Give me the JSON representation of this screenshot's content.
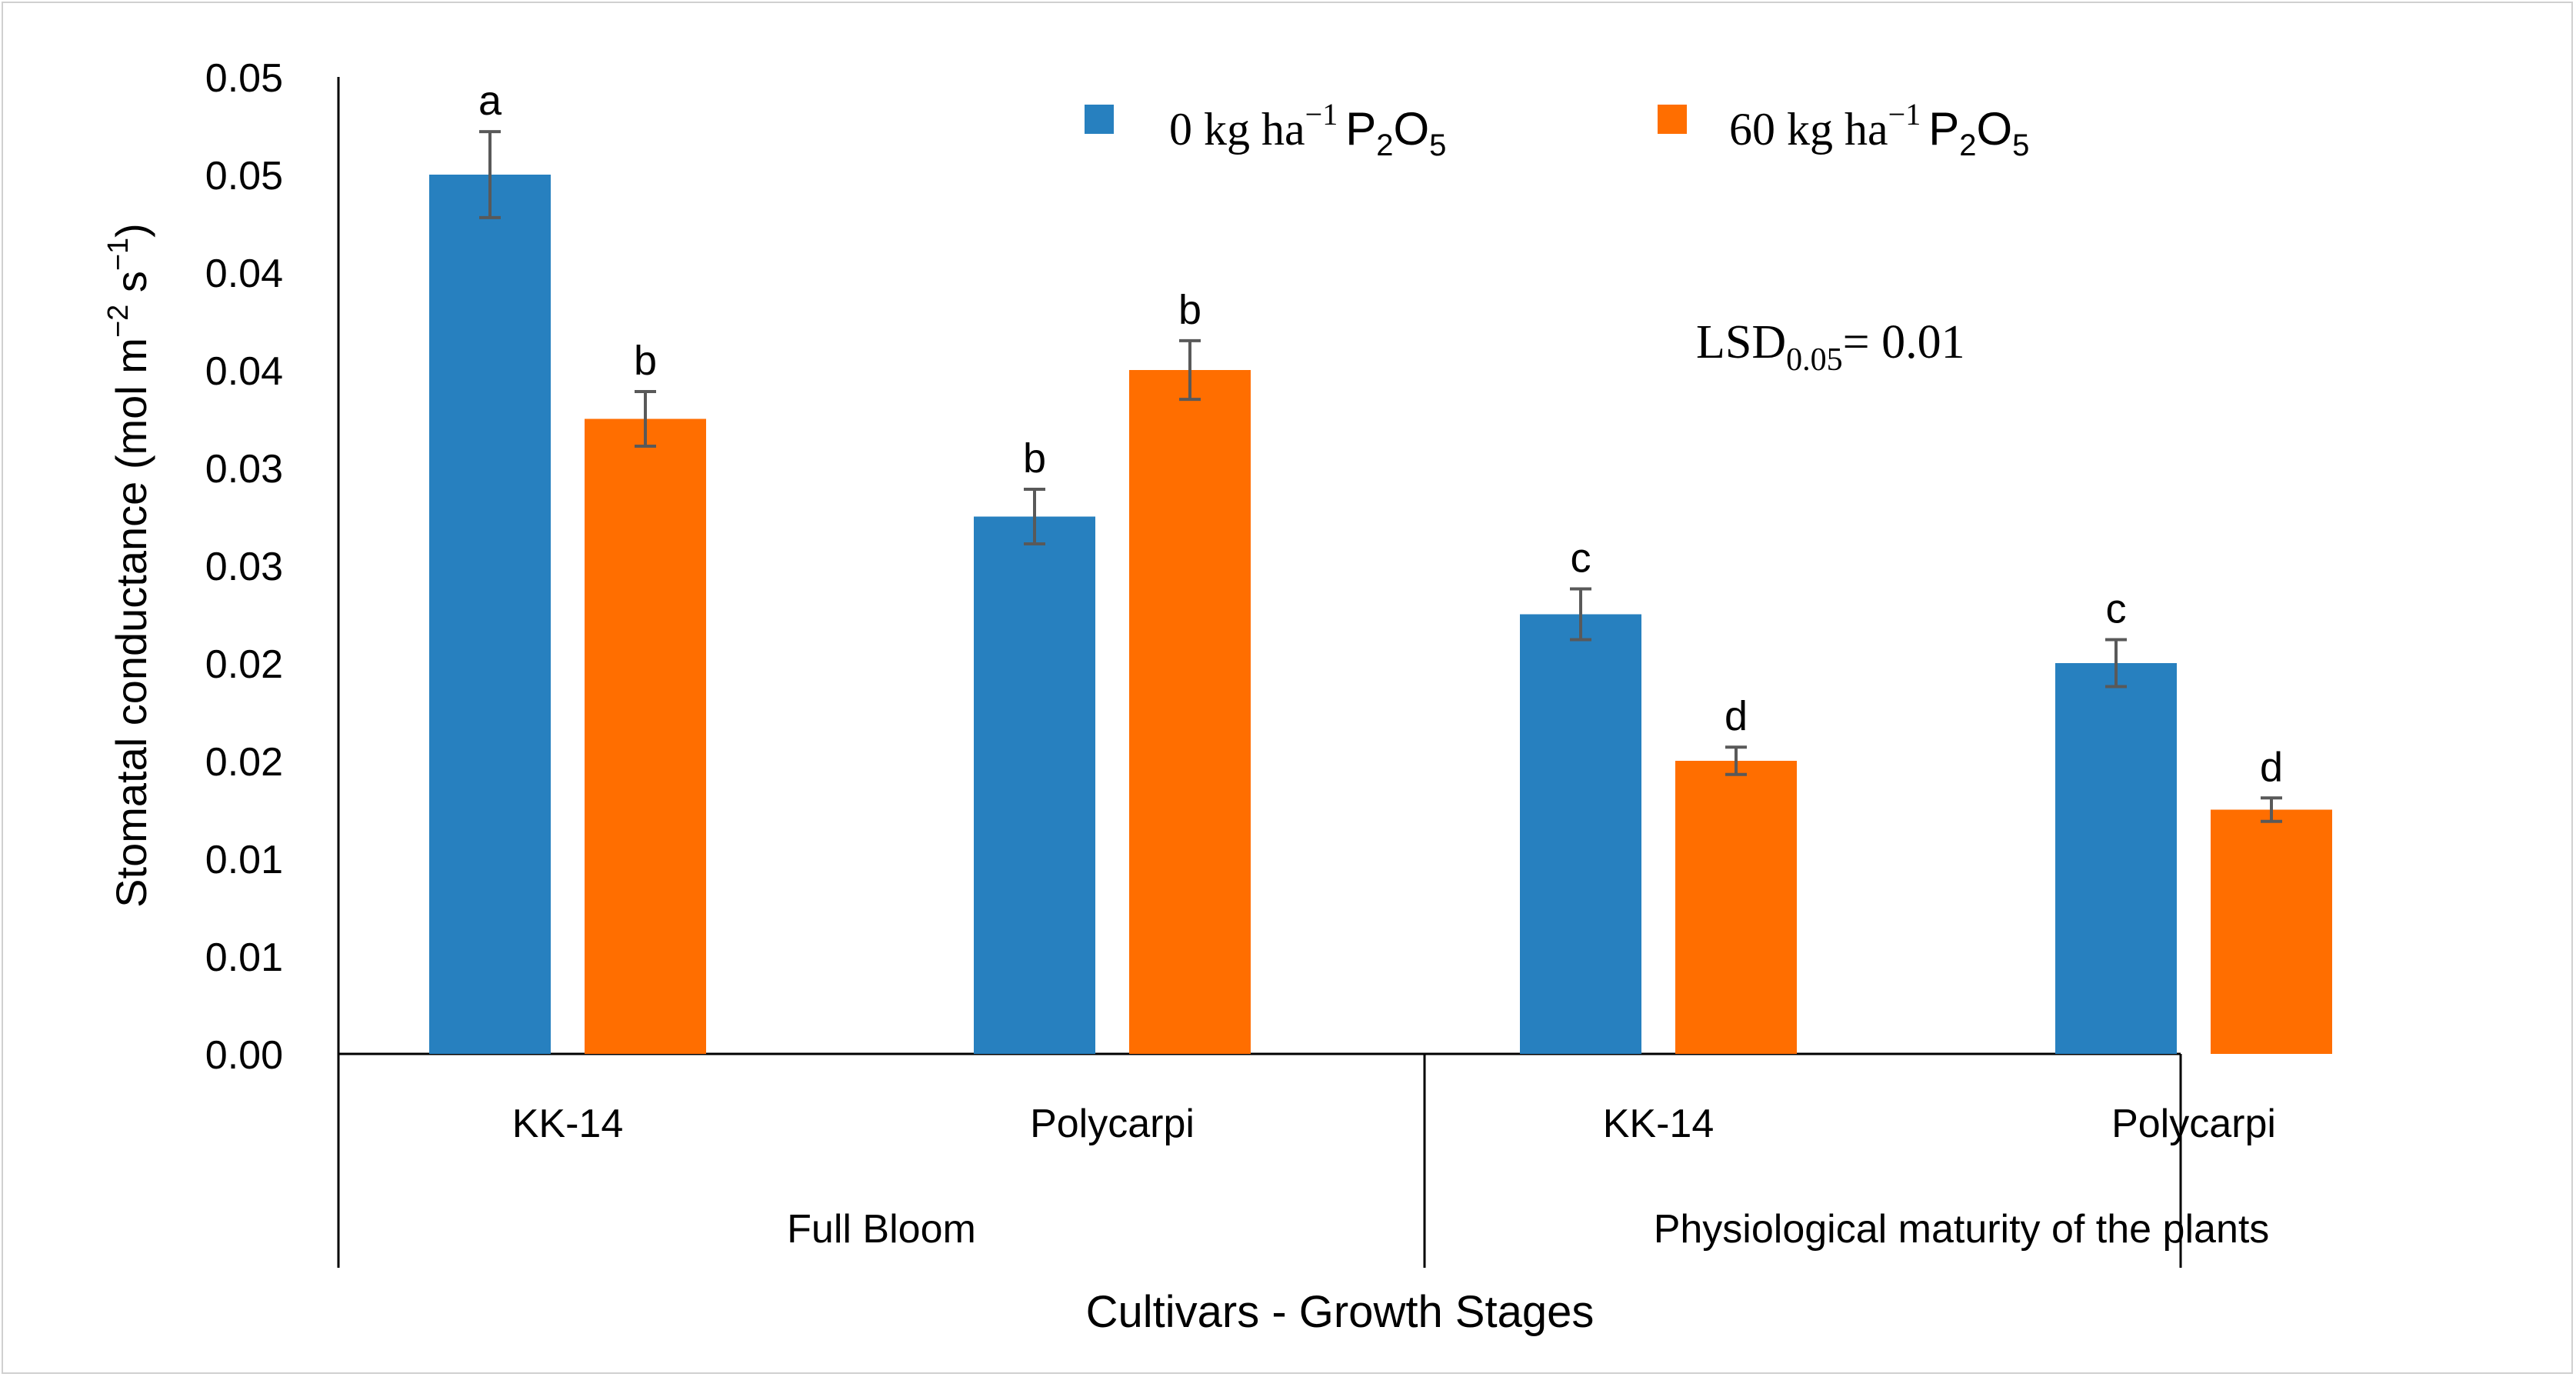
{
  "chart_data": {
    "type": "bar",
    "title": "",
    "ylabel": "Stomatal conductance (mol m⁻² s⁻¹)",
    "ylabel_parts": {
      "main": "Stomatal conductance (mol m",
      "exp1": "−2",
      "mid": " s",
      "exp2": "−1",
      "end": ")"
    },
    "xlabel": "Cultivars - Growth Stages",
    "ylim": [
      0,
      0.05
    ],
    "y_ticks": [
      "0.00",
      "0.01",
      "0.01",
      "0.02",
      "0.02",
      "0.03",
      "0.03",
      "0.04",
      "0.04",
      "0.05",
      "0.05"
    ],
    "categories": [
      "KK-14",
      "Polycarpi",
      "KK-14",
      "Polycarpi"
    ],
    "groups": [
      {
        "label": "Full Bloom",
        "categories": [
          "KK-14",
          "Polycarpi"
        ]
      },
      {
        "label": "Physiological maturity of the plants",
        "categories": [
          "KK-14",
          "Polycarpi"
        ]
      }
    ],
    "series": [
      {
        "name": "0 kg ha⁻¹ P₂O₅",
        "legend_parts": {
          "text": "0 kg ha",
          "sup": "−1",
          "chem": "P",
          "sub1": "2",
          "chem2": "O",
          "sub2": "5"
        },
        "color": "#2780BF",
        "values": [
          0.045,
          0.0275,
          0.0225,
          0.02
        ],
        "errors": [
          0.0022,
          0.0014,
          0.0013,
          0.0012
        ],
        "letters": [
          "a",
          "b",
          "c",
          "c"
        ]
      },
      {
        "name": "60 kg ha⁻¹ P₂O₅",
        "legend_parts": {
          "text": "60 kg ha",
          "sup": "−1",
          "chem": "P",
          "sub1": "2",
          "chem2": "O",
          "sub2": "5"
        },
        "color": "#FF6E00",
        "values": [
          0.0325,
          0.035,
          0.015,
          0.0125
        ],
        "errors": [
          0.0014,
          0.0015,
          0.0007,
          0.0006
        ],
        "letters": [
          "b",
          "b",
          "d",
          "d"
        ]
      }
    ],
    "annotation": {
      "main": "LSD",
      "sub": "0.05",
      "rest": "= 0.01"
    },
    "legend_position": "top-right",
    "grid": false
  }
}
